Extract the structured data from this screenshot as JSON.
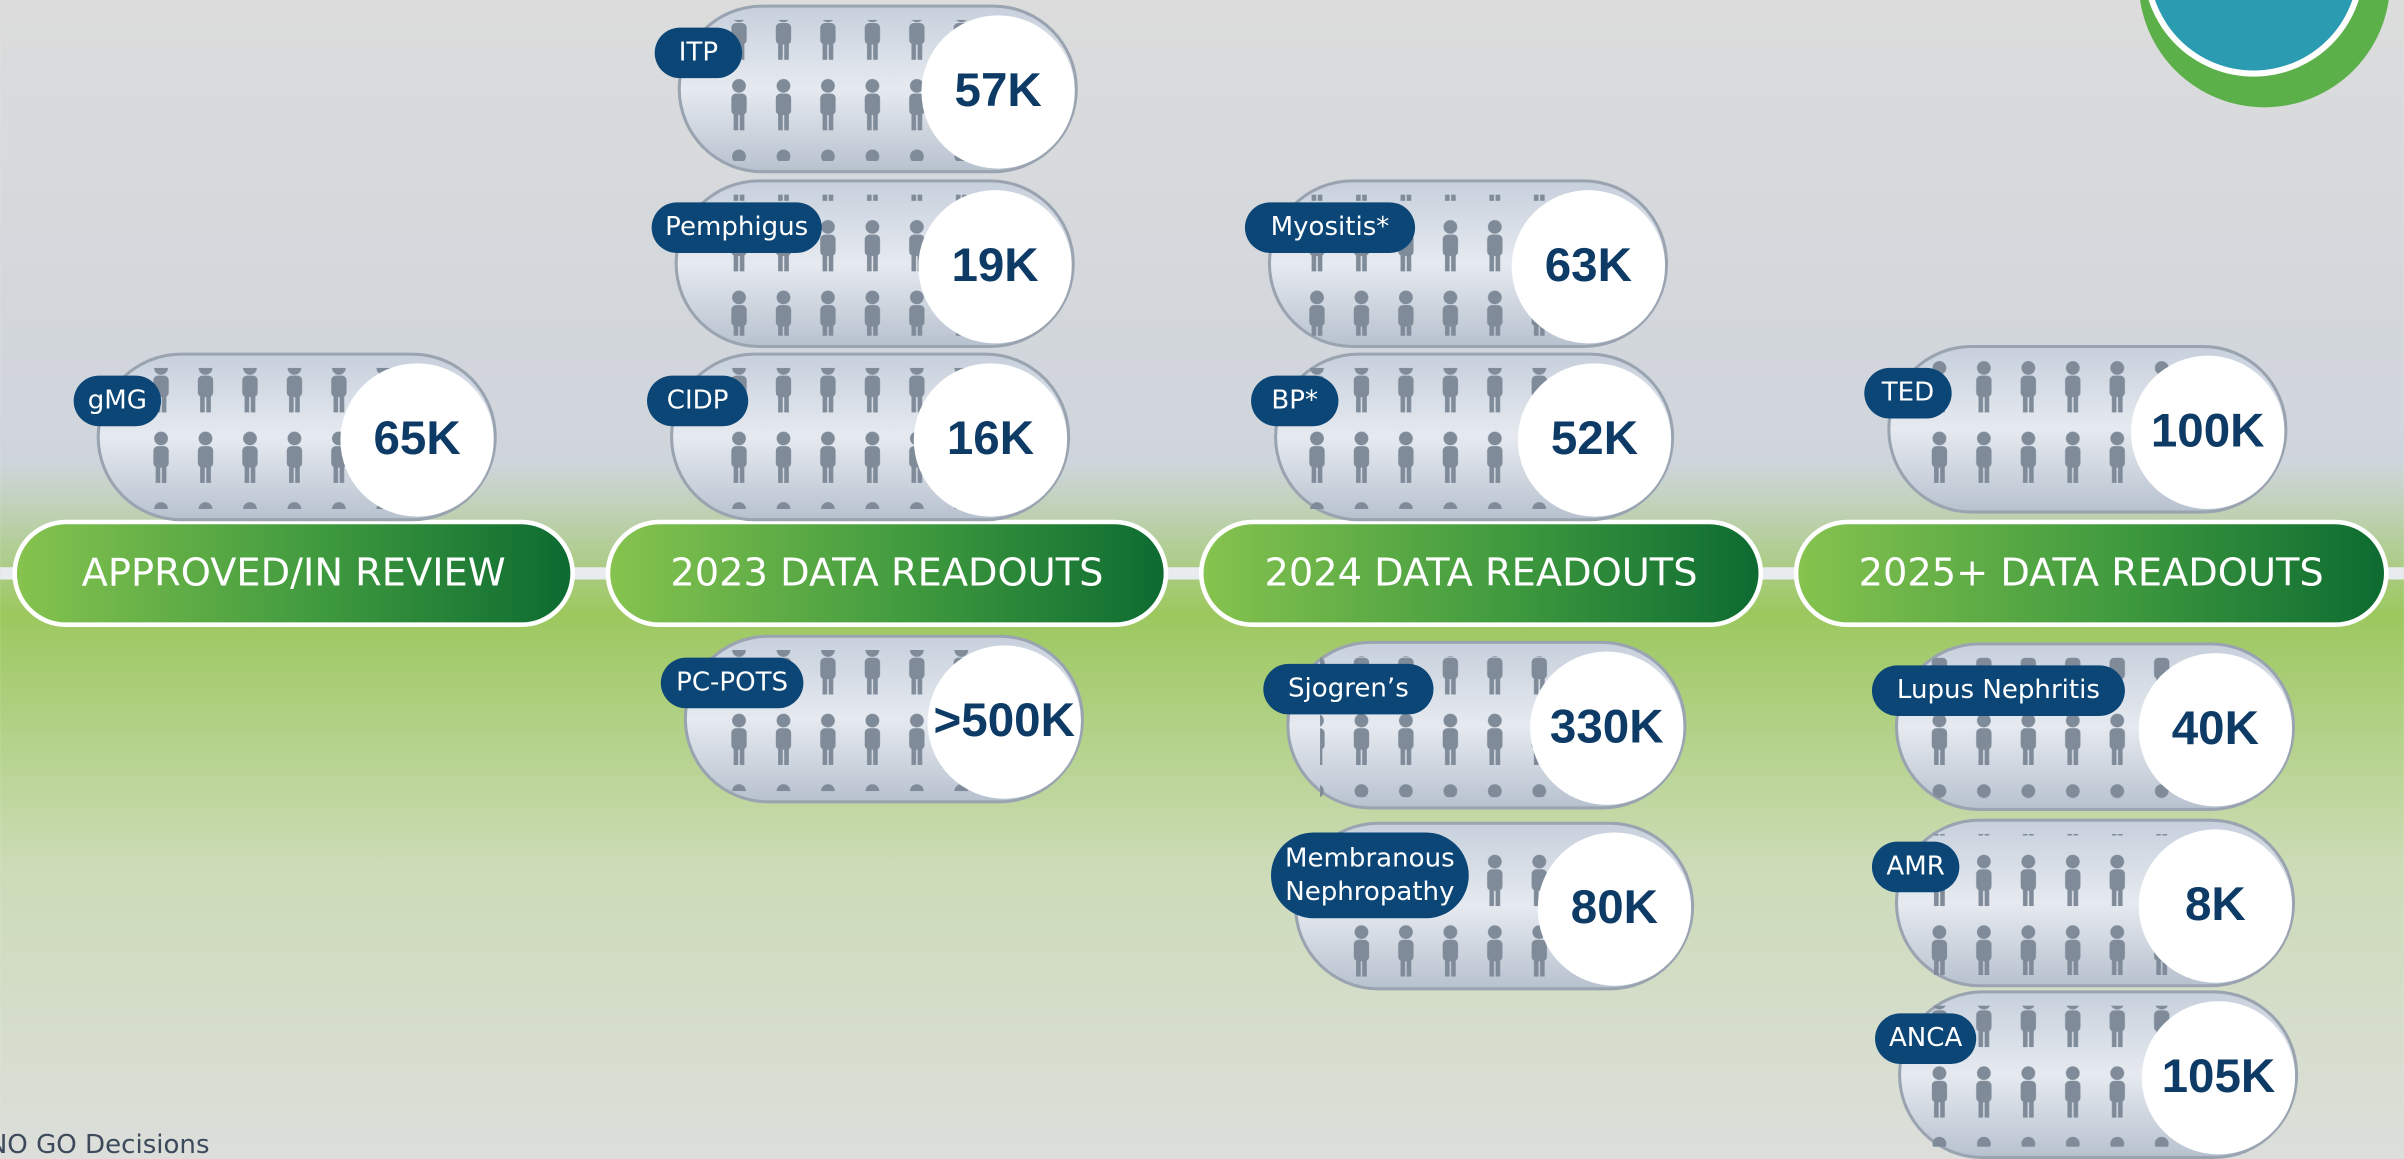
{
  "stages": [
    {
      "label": "APPROVED/IN REVIEW",
      "items": [
        {
          "name": "gMG",
          "value": "65K"
        }
      ]
    },
    {
      "label": "2023 DATA READOUTS",
      "items": [
        {
          "name": "ITP",
          "value": "57K"
        },
        {
          "name": "Pemphigus",
          "value": "19K"
        },
        {
          "name": "CIDP",
          "value": "16K"
        },
        {
          "name": "PC-POTS",
          "value": ">500K"
        }
      ]
    },
    {
      "label": "2024 DATA READOUTS",
      "items": [
        {
          "name": "Myositis*",
          "value": "63K"
        },
        {
          "name": "BP*",
          "value": "52K"
        },
        {
          "name": "Sjogren’s",
          "value": "330K"
        },
        {
          "name": "Membranous Nephropathy",
          "value": "80K"
        }
      ]
    },
    {
      "label": "2025+ DATA READOUTS",
      "items": [
        {
          "name": "TED",
          "value": "100K"
        },
        {
          "name": "Lupus Nephritis",
          "value": "40K"
        },
        {
          "name": "AMR",
          "value": "8K"
        },
        {
          "name": "ANCA",
          "value": "105K"
        }
      ]
    }
  ],
  "footer": "NO GO Decisions"
}
